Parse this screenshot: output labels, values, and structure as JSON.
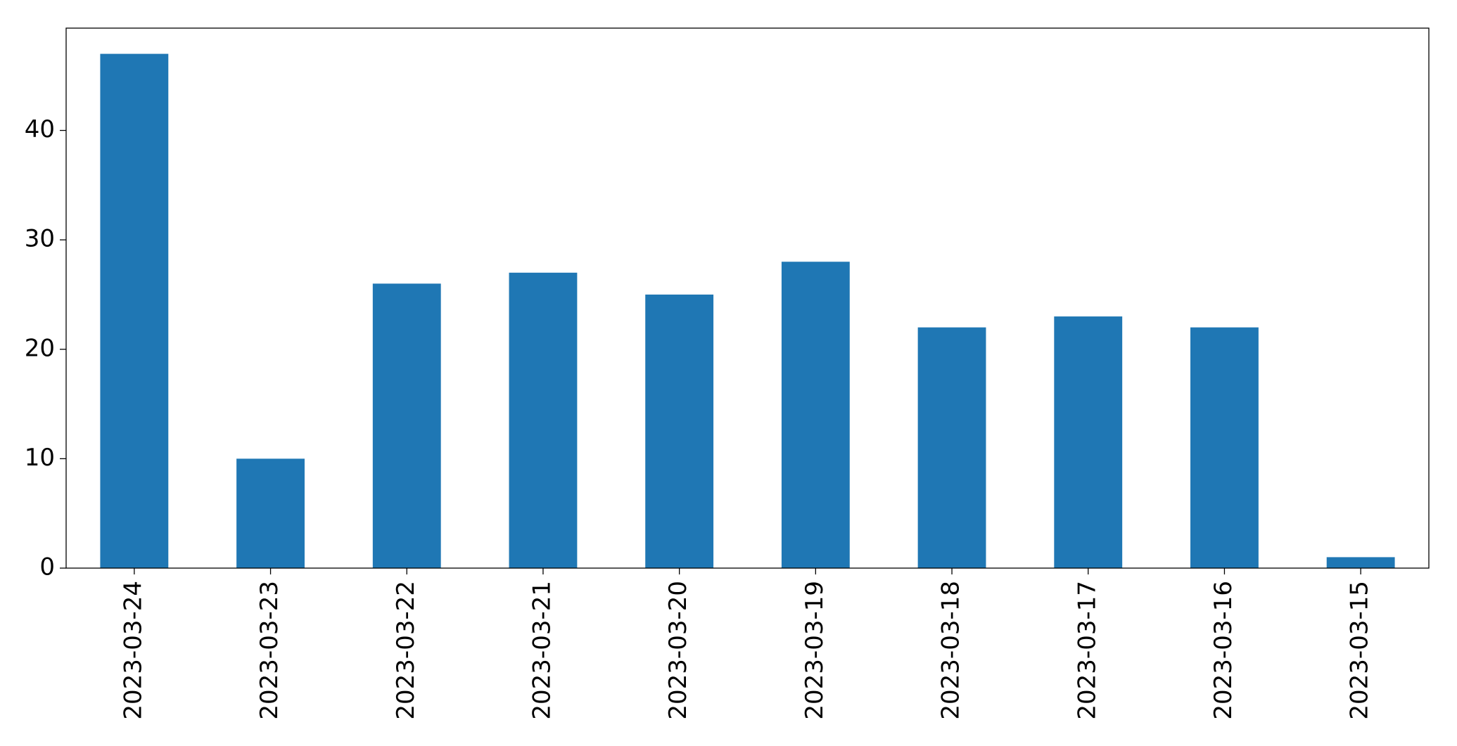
{
  "chart_data": {
    "type": "bar",
    "categories": [
      "2023-03-24",
      "2023-03-23",
      "2023-03-22",
      "2023-03-21",
      "2023-03-20",
      "2023-03-19",
      "2023-03-18",
      "2023-03-17",
      "2023-03-16",
      "2023-03-15"
    ],
    "values": [
      47,
      10,
      26,
      27,
      25,
      28,
      22,
      23,
      22,
      1
    ],
    "color": "#1f77b4",
    "ylim": [
      0,
      49.35
    ],
    "yticks": [
      0,
      10,
      20,
      30,
      40
    ],
    "grid": false
  }
}
